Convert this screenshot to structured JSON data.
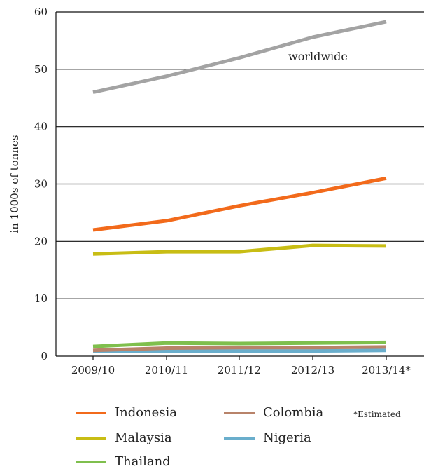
{
  "chart_data": {
    "type": "line",
    "title": "",
    "xlabel": "",
    "ylabel": "in 1000s of tonnes",
    "categories": [
      "2009/10",
      "2010/11",
      "2011/12",
      "2012/13",
      "2013/14*"
    ],
    "ylim": [
      0,
      60
    ],
    "yticks": [
      0,
      10,
      20,
      30,
      40,
      50,
      60
    ],
    "grid": "horizontal",
    "series": [
      {
        "name": "worldwide",
        "color": "#a3a3a3",
        "values": [
          46.0,
          48.8,
          52.0,
          55.6,
          58.3
        ]
      },
      {
        "name": "Indonesia",
        "color": "#f26a1b",
        "values": [
          22.0,
          23.6,
          26.2,
          28.5,
          31.0
        ]
      },
      {
        "name": "Malaysia",
        "color": "#c8bd14",
        "values": [
          17.8,
          18.2,
          18.2,
          19.3,
          19.2
        ]
      },
      {
        "name": "Thailand",
        "color": "#7fbf4d",
        "values": [
          1.7,
          2.3,
          2.2,
          2.3,
          2.4
        ]
      },
      {
        "name": "Colombia",
        "color": "#b8836a",
        "values": [
          1.0,
          1.4,
          1.5,
          1.5,
          1.6
        ]
      },
      {
        "name": "Nigeria",
        "color": "#6aaecc",
        "values": [
          0.8,
          0.9,
          0.9,
          0.9,
          1.0
        ]
      }
    ],
    "annotation": "worldwide",
    "footnote": "*Estimated"
  },
  "legend": [
    {
      "label": "Indonesia",
      "color": "#f26a1b"
    },
    {
      "label": "Colombia",
      "color": "#b8836a"
    },
    {
      "label": "Malaysia",
      "color": "#c8bd14"
    },
    {
      "label": "Nigeria",
      "color": "#6aaecc"
    },
    {
      "label": "Thailand",
      "color": "#7fbf4d"
    }
  ]
}
